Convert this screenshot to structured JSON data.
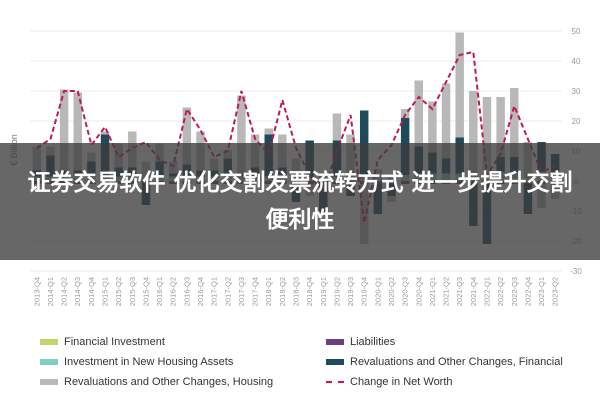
{
  "banner": {
    "text": "证券交易软件 优化交割发票流转方式 进一步提升交割便利性"
  },
  "chart_data": {
    "type": "bar",
    "title": "",
    "xlabel": "",
    "ylabel": "€ Billion",
    "ylim": [
      -30,
      50
    ],
    "yticks": [
      50,
      40,
      30,
      20,
      10,
      0,
      -10,
      -20,
      -30
    ],
    "stacked": true,
    "legend_position": "bottom",
    "categories": [
      "2013-Q4",
      "2014-Q1",
      "2014-Q2",
      "2014-Q3",
      "2014-Q4",
      "2015-Q1",
      "2015-Q2",
      "2015-Q3",
      "2015-Q4",
      "2016-Q1",
      "2016-Q2",
      "2016-Q3",
      "2016-Q4",
      "2017-Q1",
      "2017-Q2",
      "2017-Q3",
      "2017-Q4",
      "2018-Q1",
      "2018-Q2",
      "2018-Q3",
      "2018-Q4",
      "2019-Q1",
      "2019-Q2",
      "2019-Q3",
      "2019-Q4",
      "2020-Q1",
      "2020-Q2",
      "2020-Q3",
      "2020-Q4",
      "2021-Q1",
      "2021-Q2",
      "2021-Q3",
      "2021-Q4",
      "2022-Q1",
      "2022-Q2",
      "2022-Q3",
      "2022-Q4",
      "2023-Q1",
      "2023-Q2"
    ],
    "series": [
      {
        "name": "Financial Investment",
        "color": "#c8d36a",
        "kind": "bar",
        "values": [
          0.5,
          0.5,
          0.5,
          0.5,
          0.5,
          0.5,
          0.5,
          0.5,
          0.5,
          0.5,
          0.5,
          0.5,
          0.5,
          0.5,
          0.5,
          0.5,
          0.5,
          0.5,
          0.5,
          0.5,
          0.5,
          0.5,
          0.5,
          0.5,
          0.5,
          0.5,
          0.5,
          0.5,
          0.5,
          0.5,
          0.5,
          0.5,
          1,
          1,
          1,
          1,
          1,
          1,
          1
        ]
      },
      {
        "name": "Liabilities",
        "color": "#6d3f7f",
        "kind": "bar",
        "values": [
          -1,
          -1,
          -1,
          -1,
          -1,
          -1,
          -1,
          -1,
          -1,
          -1,
          -1,
          -1,
          -1,
          -1,
          -1,
          -1,
          -1,
          -1,
          -1,
          -1,
          -1,
          -1,
          -1,
          -1,
          -1,
          -1,
          -1,
          -1,
          -1,
          -1,
          -1,
          -1,
          -1,
          -1,
          -1,
          -1,
          -1,
          -1,
          -1
        ]
      },
      {
        "name": "Investment in New Housing Assets",
        "color": "#7ecfc5",
        "kind": "bar",
        "values": [
          1,
          1,
          1,
          1,
          1,
          1,
          1,
          1,
          1,
          1,
          1,
          1,
          1,
          1,
          1,
          1,
          1,
          1,
          1,
          1,
          1,
          1,
          1,
          1,
          1,
          1.5,
          1.5,
          1.5,
          2,
          2,
          2,
          2,
          2,
          2,
          2,
          2,
          2,
          2,
          2
        ]
      },
      {
        "name": "Revaluations and Other Changes, Financial",
        "color": "#1e4a5a",
        "kind": "bar",
        "values": [
          2,
          7,
          2,
          2,
          5,
          14,
          3,
          3,
          -7,
          5,
          1,
          4,
          2,
          2,
          6,
          1,
          3,
          14,
          3,
          -6,
          12,
          -10,
          12,
          -4,
          22,
          -10,
          -4,
          19,
          9,
          7,
          5,
          12,
          -14,
          -20,
          5,
          5,
          -10,
          10,
          6
        ]
      },
      {
        "name": "Revaluations and Other Changes, Housing",
        "color": "#b8b8b8",
        "kind": "bar",
        "values": [
          8,
          3,
          27,
          26,
          3,
          1,
          8,
          12,
          5,
          6,
          4,
          19,
          13,
          4,
          3,
          26,
          11,
          2,
          11,
          6,
          -4,
          1,
          9,
          14,
          -20,
          2,
          -2,
          3,
          22,
          17,
          25,
          35,
          27,
          25,
          20,
          23,
          10,
          -8,
          -5
        ]
      },
      {
        "name": "Change in Net Worth",
        "color": "#c2185b",
        "kind": "line",
        "values": [
          11,
          14,
          30,
          30,
          12,
          18,
          8,
          11,
          13,
          7,
          5,
          24,
          17,
          8,
          10,
          30,
          14,
          9,
          27,
          11,
          2,
          -4,
          10,
          22,
          -14,
          7,
          12,
          22,
          28,
          24,
          33,
          42,
          43,
          2,
          9,
          25,
          14,
          3,
          5
        ]
      }
    ]
  }
}
